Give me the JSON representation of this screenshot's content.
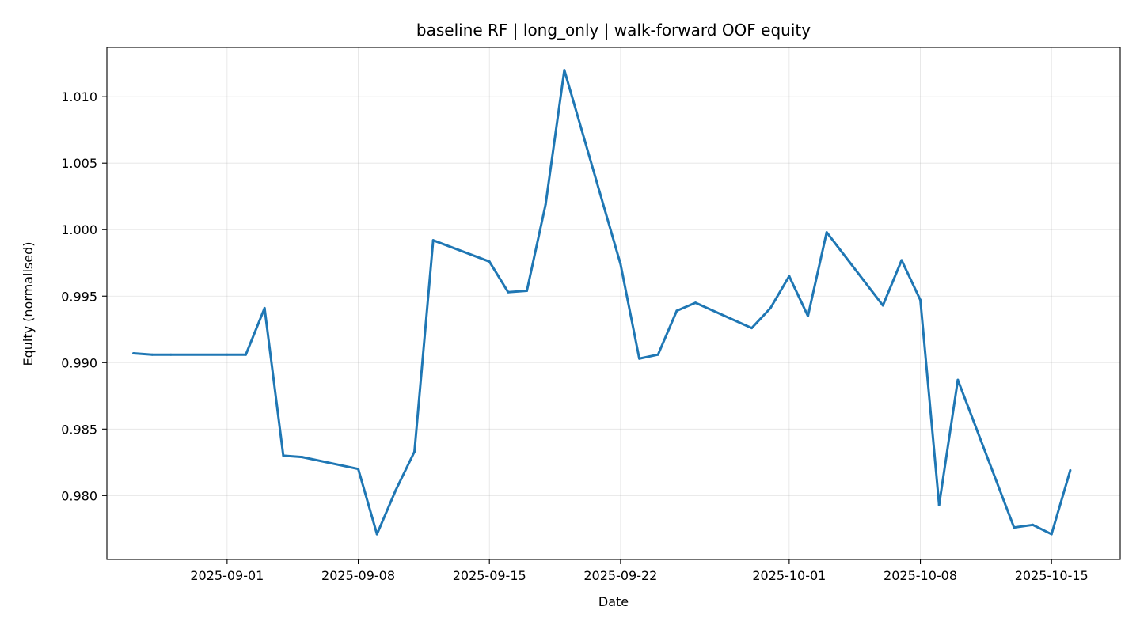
{
  "chart_data": {
    "type": "line",
    "title": "baseline RF | long_only | walk-forward OOF equity",
    "xlabel": "Date",
    "ylabel": "Equity (normalised)",
    "xlim": [
      "2025-08-25T14:00",
      "2025-10-18T16:00"
    ],
    "ylim": [
      0.9752,
      1.0137
    ],
    "grid": true,
    "legend": "none",
    "x_ticks": [
      "2025-09-01",
      "2025-09-08",
      "2025-09-15",
      "2025-09-22",
      "2025-10-01",
      "2025-10-08",
      "2025-10-15"
    ],
    "y_ticks": [
      "0.980",
      "0.985",
      "0.990",
      "0.995",
      "1.000",
      "1.005",
      "1.010"
    ],
    "series": [
      {
        "color": "#1f77b4",
        "x": [
          "2025-08-27",
          "2025-08-28",
          "2025-08-29",
          "2025-09-01",
          "2025-09-02",
          "2025-09-03",
          "2025-09-04",
          "2025-09-05",
          "2025-09-08",
          "2025-09-09",
          "2025-09-10",
          "2025-09-11",
          "2025-09-12",
          "2025-09-15",
          "2025-09-16",
          "2025-09-17",
          "2025-09-18",
          "2025-09-19",
          "2025-09-22",
          "2025-09-23",
          "2025-09-24",
          "2025-09-25",
          "2025-09-26",
          "2025-09-29",
          "2025-09-30",
          "2025-10-01",
          "2025-10-02",
          "2025-10-03",
          "2025-10-06",
          "2025-10-07",
          "2025-10-08",
          "2025-10-09",
          "2025-10-10",
          "2025-10-13",
          "2025-10-14",
          "2025-10-15",
          "2025-10-16"
        ],
        "values": [
          0.9907,
          0.9906,
          0.9906,
          0.9906,
          0.9906,
          0.9941,
          0.983,
          0.9829,
          0.982,
          0.9771,
          0.9804,
          0.9833,
          0.9992,
          0.9976,
          0.9953,
          0.9954,
          1.0019,
          1.012,
          0.9974,
          0.9903,
          0.9906,
          0.9939,
          0.9945,
          0.9926,
          0.9941,
          0.9965,
          0.9935,
          0.9998,
          0.9943,
          0.9977,
          0.9947,
          0.9793,
          0.9887,
          0.9776,
          0.9778,
          0.9771,
          0.9819
        ]
      }
    ]
  }
}
